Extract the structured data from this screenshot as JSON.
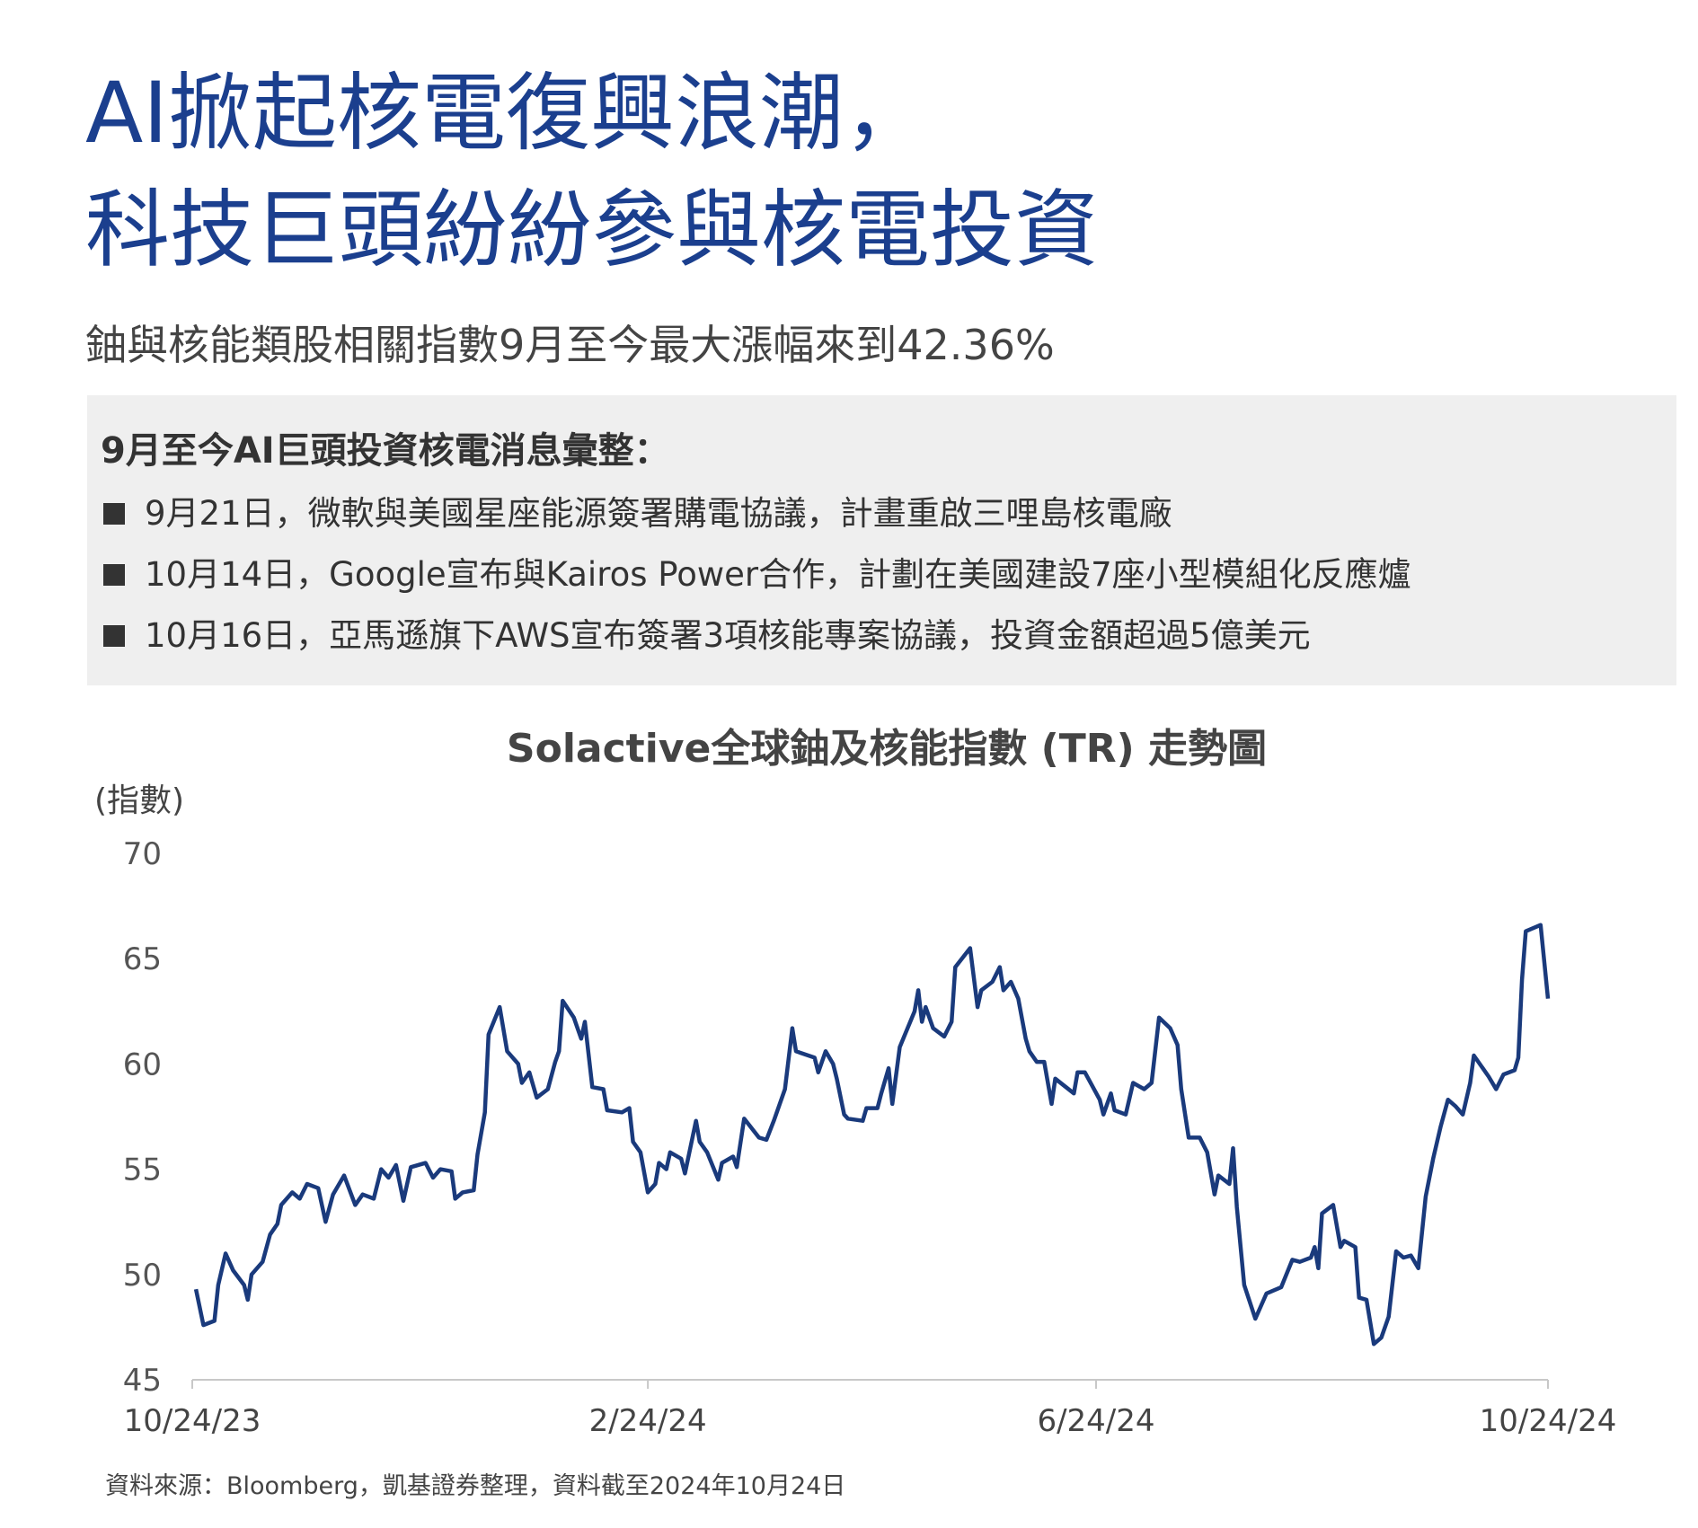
{
  "header": {
    "title_lines": [
      "AI掀起核電復興浪潮，",
      "科技巨頭紛紛參與核電投資"
    ],
    "subtitle": "鈾與核能類股相關指數9月至今最大漲幅來到42.36%"
  },
  "news_box": {
    "heading": "9月至今AI巨頭投資核電消息彙整：",
    "items": [
      "9月21日，微軟與美國星座能源簽署購電協議，計畫重啟三哩島核電廠",
      "10月14日，Google宣布與Kairos Power合作，計劃在美國建設7座小型模組化反應爐",
      "10月16日，亞馬遜旗下AWS宣布簽署3項核能專案協議，投資金額超過5億美元"
    ]
  },
  "chart_data": {
    "type": "line",
    "title": "Solactive全球鈾及核能指數 (TR) 走勢圖",
    "y_label": "(指數)",
    "x": [
      "2023-10-25",
      "2023-10-27",
      "2023-10-30",
      "2023-10-31",
      "2023-11-02",
      "2023-11-04",
      "2023-11-07",
      "2023-11-08",
      "2023-11-09",
      "2023-11-12",
      "2023-11-14",
      "2023-11-16",
      "2023-11-17",
      "2023-11-20",
      "2023-11-22",
      "2023-11-24",
      "2023-11-27",
      "2023-11-29",
      "2023-12-01",
      "2023-12-04",
      "2023-12-07",
      "2023-12-09",
      "2023-12-12",
      "2023-12-14",
      "2023-12-16",
      "2023-12-18",
      "2023-12-20",
      "2023-12-22",
      "2023-12-26",
      "2023-12-28",
      "2023-12-30",
      "2024-01-02",
      "2024-01-03",
      "2024-01-05",
      "2024-01-08",
      "2024-01-09",
      "2024-01-11",
      "2024-01-12",
      "2024-01-15",
      "2024-01-17",
      "2024-01-20",
      "2024-01-21",
      "2024-01-23",
      "2024-01-25",
      "2024-01-28",
      "2024-01-30",
      "2024-01-31",
      "2024-02-01",
      "2024-02-04",
      "2024-02-06",
      "2024-02-07",
      "2024-02-09",
      "2024-02-12",
      "2024-02-13",
      "2024-02-17",
      "2024-02-19",
      "2024-02-20",
      "2024-02-22",
      "2024-02-24",
      "2024-02-26",
      "2024-02-27",
      "2024-02-29",
      "2024-03-01",
      "2024-03-04",
      "2024-03-05",
      "2024-03-08",
      "2024-03-09",
      "2024-03-11",
      "2024-03-14",
      "2024-03-15",
      "2024-03-18",
      "2024-03-19",
      "2024-03-21",
      "2024-03-25",
      "2024-03-27",
      "2024-03-29",
      "2024-04-01",
      "2024-04-03",
      "2024-04-04",
      "2024-04-09",
      "2024-04-10",
      "2024-04-12",
      "2024-04-14",
      "2024-04-15",
      "2024-04-17",
      "2024-04-18",
      "2024-04-22",
      "2024-04-23",
      "2024-04-26",
      "2024-04-27",
      "2024-04-29",
      "2024-04-30",
      "2024-05-02",
      "2024-05-06",
      "2024-05-07",
      "2024-05-08",
      "2024-05-09",
      "2024-05-11",
      "2024-05-14",
      "2024-05-16",
      "2024-05-17",
      "2024-05-21",
      "2024-05-23",
      "2024-05-24",
      "2024-05-27",
      "2024-05-29",
      "2024-05-30",
      "2024-06-01",
      "2024-06-03",
      "2024-06-05",
      "2024-06-06",
      "2024-06-08",
      "2024-06-10",
      "2024-06-12",
      "2024-06-13",
      "2024-06-18",
      "2024-06-19",
      "2024-06-21",
      "2024-06-25",
      "2024-06-26",
      "2024-06-28",
      "2024-06-29",
      "2024-07-02",
      "2024-07-04",
      "2024-07-07",
      "2024-07-09",
      "2024-07-11",
      "2024-07-14",
      "2024-07-16",
      "2024-07-17",
      "2024-07-19",
      "2024-07-22",
      "2024-07-24",
      "2024-07-26",
      "2024-07-27",
      "2024-07-30",
      "2024-07-31",
      "2024-08-01",
      "2024-08-03",
      "2024-08-06",
      "2024-08-09",
      "2024-08-13",
      "2024-08-16",
      "2024-08-18",
      "2024-08-21",
      "2024-08-22",
      "2024-08-23",
      "2024-08-24",
      "2024-08-27",
      "2024-08-29",
      "2024-08-30",
      "2024-09-02",
      "2024-09-03",
      "2024-09-05",
      "2024-09-07",
      "2024-09-09",
      "2024-09-11",
      "2024-09-13",
      "2024-09-15",
      "2024-09-17",
      "2024-09-19",
      "2024-09-21",
      "2024-09-23",
      "2024-09-25",
      "2024-09-27",
      "2024-09-29",
      "2024-10-01",
      "2024-10-03",
      "2024-10-04",
      "2024-10-08",
      "2024-10-10",
      "2024-10-12",
      "2024-10-15",
      "2024-10-16",
      "2024-10-17",
      "2024-10-18",
      "2024-10-22",
      "2024-10-24"
    ],
    "series": [
      {
        "name": "Solactive全球鈾及核能指數 (TR)",
        "color": "#1a3a7c",
        "values": [
          49.3,
          47.6,
          47.8,
          49.5,
          51.0,
          50.2,
          49.5,
          48.8,
          50.0,
          50.6,
          51.9,
          52.4,
          53.3,
          53.9,
          53.6,
          54.3,
          54.1,
          52.5,
          53.8,
          54.7,
          53.3,
          53.8,
          53.6,
          55.0,
          54.6,
          55.2,
          53.5,
          55.1,
          55.3,
          54.6,
          55.0,
          54.9,
          53.6,
          53.9,
          54.0,
          55.7,
          57.7,
          61.4,
          62.7,
          60.6,
          60.0,
          59.1,
          59.6,
          58.4,
          58.8,
          60.1,
          60.6,
          63.0,
          62.2,
          61.2,
          62.0,
          58.9,
          58.8,
          57.8,
          57.7,
          57.9,
          56.3,
          55.8,
          53.9,
          54.3,
          55.3,
          55.0,
          55.8,
          55.5,
          54.8,
          57.3,
          56.3,
          55.8,
          54.5,
          55.3,
          55.6,
          55.1,
          57.4,
          56.5,
          56.4,
          57.3,
          58.8,
          61.7,
          60.6,
          60.3,
          59.6,
          60.6,
          60.0,
          59.3,
          57.6,
          57.4,
          57.3,
          57.9,
          57.9,
          58.6,
          59.8,
          58.1,
          60.8,
          62.5,
          63.5,
          62.0,
          62.7,
          61.7,
          61.3,
          62.0,
          64.6,
          65.5,
          62.7,
          63.5,
          63.9,
          64.6,
          63.5,
          63.9,
          63.1,
          61.2,
          60.6,
          60.1,
          60.1,
          58.1,
          59.3,
          58.6,
          59.6,
          59.6,
          58.3,
          57.6,
          58.6,
          57.8,
          57.6,
          59.1,
          58.8,
          59.1,
          62.2,
          61.7,
          60.9,
          58.8,
          56.5,
          56.5,
          55.8,
          53.8,
          54.7,
          54.3,
          56.0,
          53.2,
          49.5,
          47.9,
          49.1,
          49.4,
          50.7,
          50.6,
          50.8,
          51.3,
          50.3,
          52.9,
          53.3,
          51.3,
          51.6,
          51.3,
          48.9,
          48.8,
          46.7,
          47.0,
          48.0,
          51.1,
          50.8,
          50.9,
          50.3,
          53.7,
          55.5,
          57.0,
          58.3,
          58.0,
          57.6,
          59.1,
          60.4,
          59.4,
          58.8,
          59.5,
          59.7,
          60.3,
          64.0,
          66.3,
          66.6,
          63.1
        ]
      }
    ],
    "xlim": [
      "2023-10-24",
      "2024-10-24"
    ],
    "xticks": [
      {
        "value": "2023-10-24",
        "label": "10/24/23"
      },
      {
        "value": "2024-02-24",
        "label": "2/24/24"
      },
      {
        "value": "2024-06-24",
        "label": "6/24/24"
      },
      {
        "value": "2024-10-24",
        "label": "10/24/24"
      }
    ],
    "ylim": [
      45,
      70
    ],
    "yticks": [
      45,
      50,
      55,
      60,
      65,
      70
    ],
    "grid": false,
    "source": "資料來源：Bloomberg，凱基證券整理，資料截至2024年10月24日"
  }
}
